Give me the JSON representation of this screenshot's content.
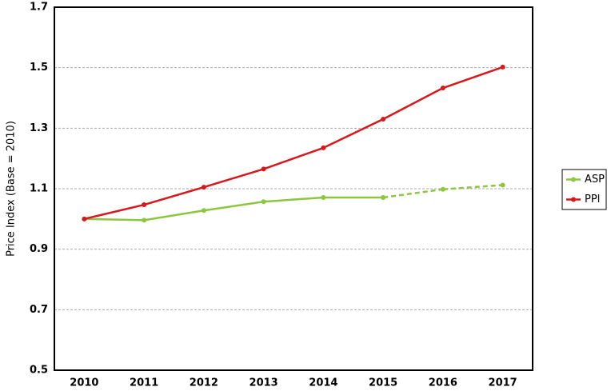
{
  "chart_data": {
    "type": "line",
    "y_label": "Price Index (Base = 2010)",
    "categories": [
      "2010",
      "2011",
      "2012",
      "2013",
      "2014",
      "2015",
      "2016",
      "2017"
    ],
    "series": [
      {
        "name": "ASP",
        "color": "#8dc63f",
        "values": [
          1.0,
          0.996,
          1.028,
          1.057,
          1.071,
          1.071,
          1.098,
          1.112
        ],
        "segment_styles": [
          "solid",
          "solid",
          "solid",
          "solid",
          "solid",
          "dashed",
          "dashed"
        ]
      },
      {
        "name": "PPI",
        "color": "#d7191c",
        "values": [
          1.0,
          1.047,
          1.105,
          1.165,
          1.235,
          1.33,
          1.433,
          1.502
        ],
        "segment_styles": [
          "solid",
          "solid",
          "solid",
          "solid",
          "solid",
          "solid",
          "solid"
        ]
      }
    ],
    "ylim": [
      0.5,
      1.7
    ],
    "yticks": [
      0.5,
      0.7,
      0.9,
      1.1,
      1.3,
      1.5,
      1.7
    ],
    "grid": true,
    "legend": "right"
  }
}
